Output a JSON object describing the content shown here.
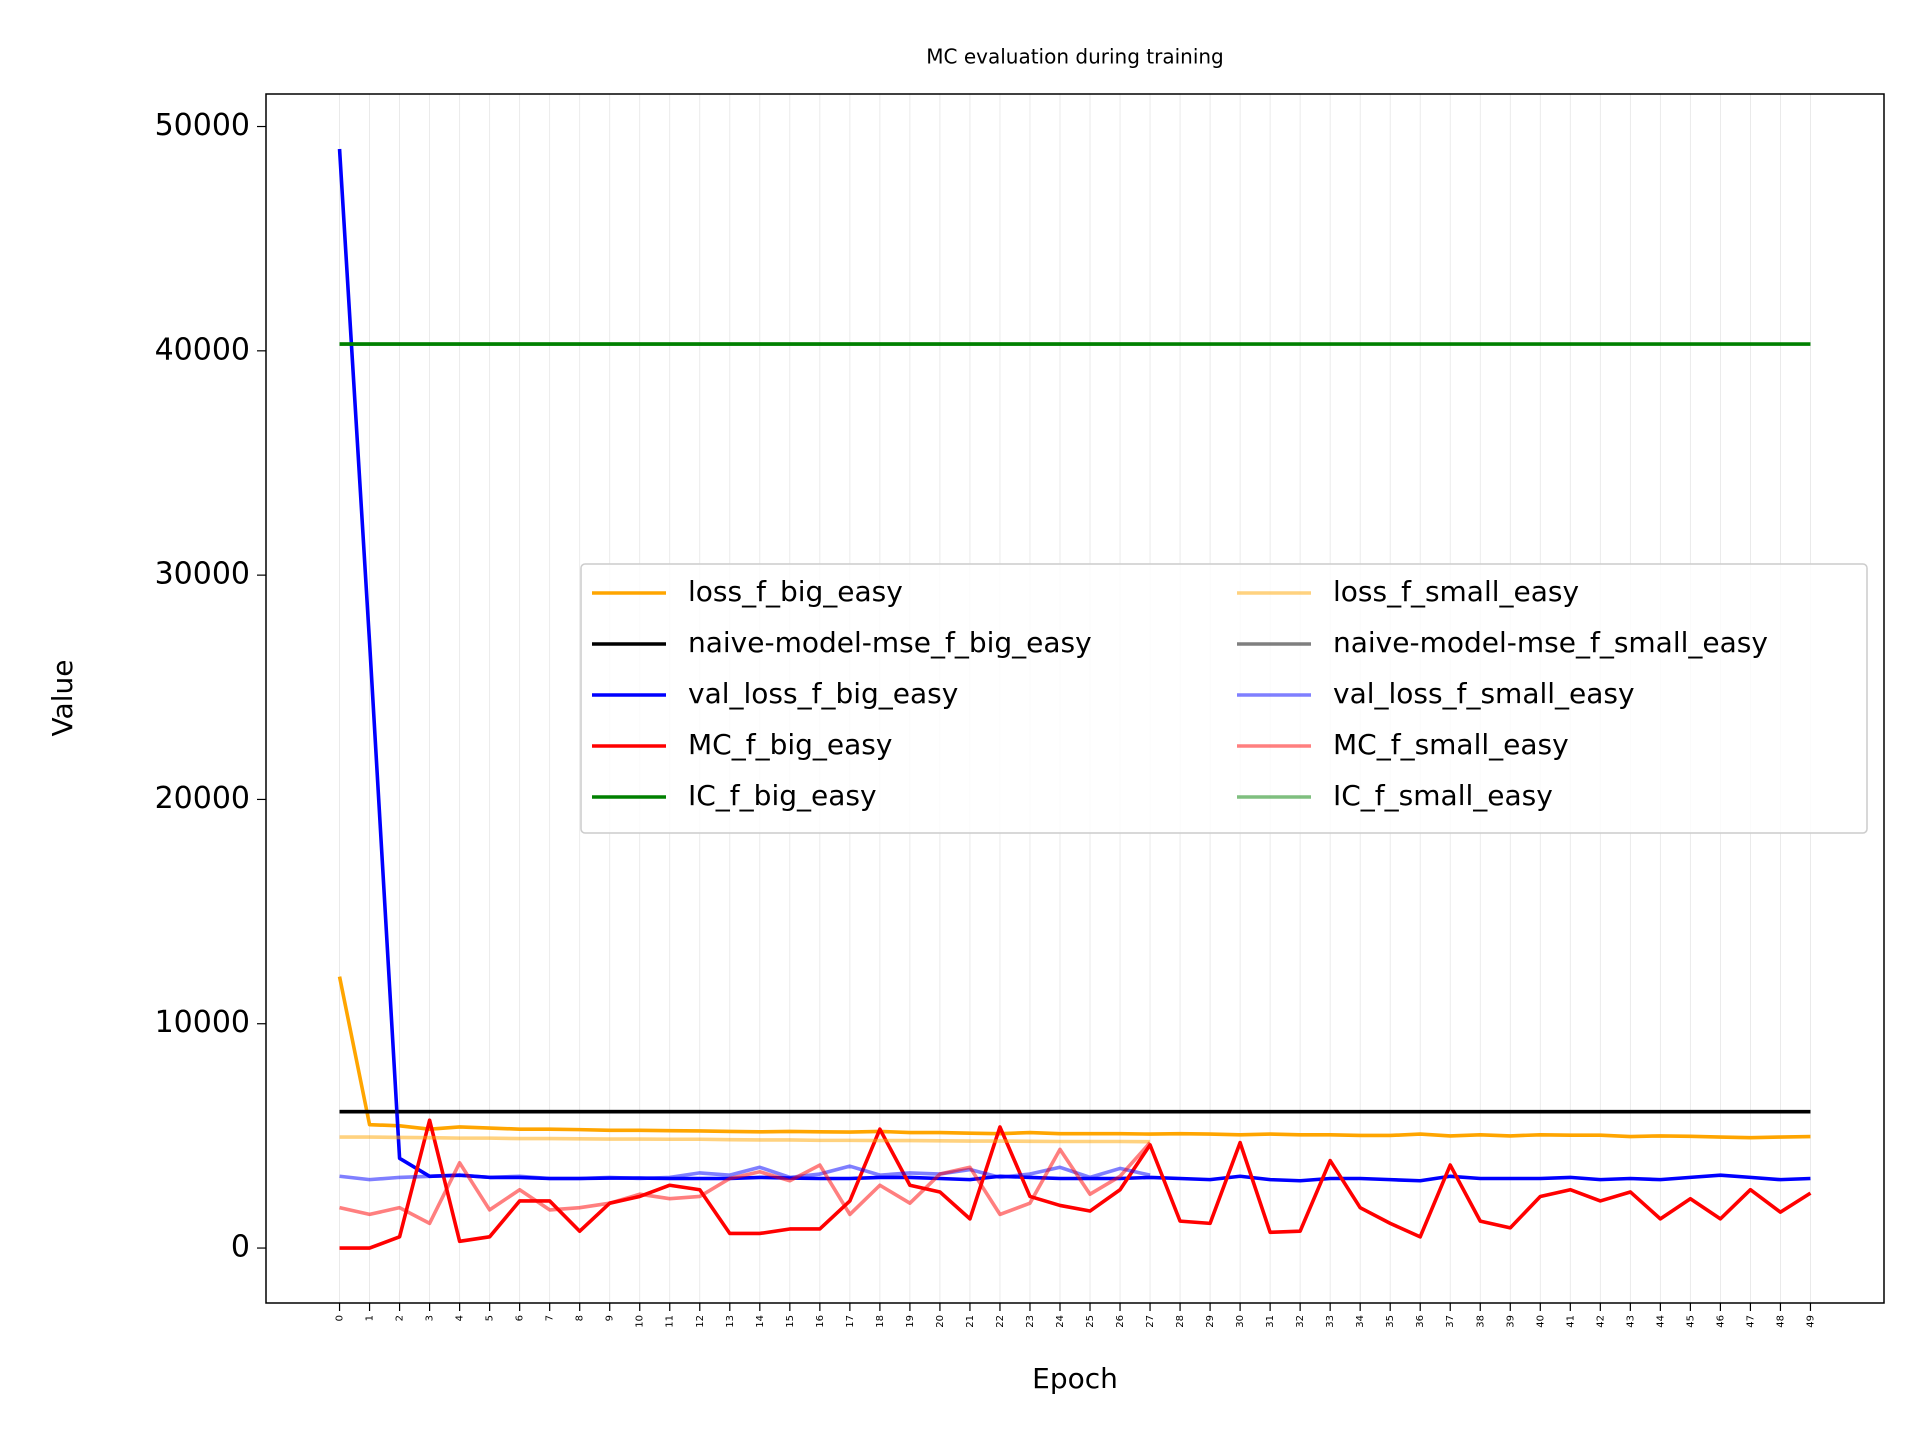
{
  "chart_data": {
    "type": "line",
    "title": "MC evaluation during training",
    "xlabel": "Epoch",
    "ylabel": "Value",
    "x": [
      0,
      1,
      2,
      3,
      4,
      5,
      6,
      7,
      8,
      9,
      10,
      11,
      12,
      13,
      14,
      15,
      16,
      17,
      18,
      19,
      20,
      21,
      22,
      23,
      24,
      25,
      26,
      27,
      28,
      29,
      30,
      31,
      32,
      33,
      34,
      35,
      36,
      37,
      38,
      39,
      40,
      41,
      42,
      43,
      44,
      45,
      46,
      47,
      48,
      49
    ],
    "xlim": [
      -2.45,
      51.45
    ],
    "xticks": [
      0,
      1,
      2,
      3,
      4,
      5,
      6,
      7,
      8,
      9,
      10,
      11,
      12,
      13,
      14,
      15,
      16,
      17,
      18,
      19,
      20,
      21,
      22,
      23,
      24,
      25,
      26,
      27,
      28,
      29,
      30,
      31,
      32,
      33,
      34,
      35,
      36,
      37,
      38,
      39,
      40,
      41,
      42,
      43,
      44,
      45,
      46,
      47,
      48,
      49
    ],
    "ylim": [
      -2450,
      51450
    ],
    "yticks": [
      0,
      10000,
      20000,
      30000,
      40000,
      50000
    ],
    "grid": "x",
    "legend": "center right",
    "legend_ncol": 2,
    "series": [
      {
        "name": "loss_f_big_easy",
        "color": "orange",
        "alpha": 1,
        "values": [
          12100,
          5500,
          5450,
          5300,
          5400,
          5350,
          5300,
          5300,
          5280,
          5250,
          5250,
          5230,
          5220,
          5200,
          5180,
          5200,
          5180,
          5170,
          5200,
          5150,
          5150,
          5120,
          5100,
          5150,
          5100,
          5100,
          5100,
          5080,
          5100,
          5080,
          5050,
          5080,
          5050,
          5050,
          5020,
          5020,
          5080,
          5000,
          5050,
          5000,
          5050,
          5030,
          5030,
          4970,
          5000,
          4980,
          4950,
          4920,
          4950,
          4970
        ]
      },
      {
        "name": "naive-model-mse_f_big_easy",
        "color": "black",
        "alpha": 1,
        "values": [
          6080,
          6080,
          6080,
          6080,
          6080,
          6080,
          6080,
          6080,
          6080,
          6080,
          6080,
          6080,
          6080,
          6080,
          6080,
          6080,
          6080,
          6080,
          6080,
          6080,
          6080,
          6080,
          6080,
          6080,
          6080,
          6080,
          6080,
          6080,
          6080,
          6080,
          6080,
          6080,
          6080,
          6080,
          6080,
          6080,
          6080,
          6080,
          6080,
          6080,
          6080,
          6080,
          6080,
          6080,
          6080,
          6080,
          6080,
          6080,
          6080,
          6080
        ]
      },
      {
        "name": "val_loss_f_big_easy",
        "color": "blue",
        "alpha": 1,
        "values": [
          49000,
          27000,
          4000,
          3200,
          3250,
          3150,
          3150,
          3100,
          3100,
          3120,
          3120,
          3100,
          3100,
          3100,
          3150,
          3120,
          3100,
          3100,
          3150,
          3150,
          3100,
          3050,
          3200,
          3150,
          3100,
          3100,
          3100,
          3150,
          3100,
          3050,
          3200,
          3050,
          3000,
          3100,
          3100,
          3050,
          3000,
          3200,
          3100,
          3100,
          3100,
          3150,
          3050,
          3100,
          3050,
          3150,
          3250,
          3150,
          3050,
          3100
        ]
      },
      {
        "name": "MC_f_big_easy",
        "color": "red",
        "alpha": 1,
        "values": [
          0,
          0,
          500,
          5700,
          300,
          500,
          2100,
          2100,
          750,
          2000,
          2300,
          2800,
          2600,
          650,
          650,
          850,
          850,
          2100,
          5300,
          2800,
          2500,
          1300,
          5400,
          2300,
          1900,
          1650,
          2600,
          4600,
          1200,
          1100,
          4700,
          700,
          750,
          3900,
          1800,
          1100,
          500,
          3700,
          1200,
          900,
          2300,
          2600,
          2100,
          2500,
          1300,
          2200,
          1300,
          2600,
          1600,
          2450
        ]
      },
      {
        "name": "IC_f_big_easy",
        "color": "green",
        "alpha": 1,
        "values": [
          40300,
          40300,
          40300,
          40300,
          40300,
          40300,
          40300,
          40300,
          40300,
          40300,
          40300,
          40300,
          40300,
          40300,
          40300,
          40300,
          40300,
          40300,
          40300,
          40300,
          40300,
          40300,
          40300,
          40300,
          40300,
          40300,
          40300,
          40300,
          40300,
          40300,
          40300,
          40300,
          40300,
          40300,
          40300,
          40300,
          40300,
          40300,
          40300,
          40300,
          40300,
          40300,
          40300,
          40300,
          40300,
          40300,
          40300,
          40300,
          40300,
          40300
        ]
      },
      {
        "name": "loss_f_small_easy",
        "color": "orange",
        "alpha": 0.5,
        "values": [
          4950,
          4950,
          4930,
          4920,
          4900,
          4900,
          4880,
          4880,
          4870,
          4860,
          4860,
          4850,
          4850,
          4830,
          4820,
          4820,
          4800,
          4800,
          4790,
          4790,
          4780,
          4770,
          4770,
          4760,
          4750,
          4750,
          4750,
          4740,
          null,
          null,
          null,
          null,
          null,
          null,
          null,
          null,
          null,
          null,
          null,
          null,
          null,
          null,
          null,
          null,
          null,
          null,
          null,
          null,
          null,
          null
        ]
      },
      {
        "name": "naive-model-mse_f_small_easy",
        "color": "black",
        "alpha": 0.5,
        "values": [
          6080,
          6080,
          6080,
          6080,
          6080,
          6080,
          6080,
          6080,
          6080,
          6080,
          6080,
          6080,
          6080,
          6080,
          6080,
          6080,
          6080,
          6080,
          6080,
          6080,
          6080,
          6080,
          6080,
          6080,
          6080,
          6080,
          6080,
          6080,
          null,
          null,
          null,
          null,
          null,
          null,
          null,
          null,
          null,
          null,
          null,
          null,
          null,
          null,
          null,
          null,
          null,
          null,
          null,
          null,
          null,
          null
        ]
      },
      {
        "name": "val_loss_f_small_easy",
        "color": "blue",
        "alpha": 0.5,
        "values": [
          3200,
          3050,
          3150,
          3200,
          3250,
          3150,
          3200,
          3100,
          3100,
          3150,
          3100,
          3150,
          3350,
          3250,
          3600,
          3150,
          3300,
          3650,
          3250,
          3350,
          3300,
          3500,
          3150,
          3300,
          3600,
          3150,
          3550,
          3250,
          null,
          null,
          null,
          null,
          null,
          null,
          null,
          null,
          null,
          null,
          null,
          null,
          null,
          null,
          null,
          null,
          null,
          null,
          null,
          null,
          null,
          null
        ]
      },
      {
        "name": "MC_f_small_easy",
        "color": "red",
        "alpha": 0.5,
        "values": [
          1800,
          1500,
          1800,
          1100,
          3800,
          1700,
          2600,
          1700,
          1800,
          2000,
          2400,
          2200,
          2300,
          3100,
          3400,
          3000,
          3700,
          1500,
          2800,
          2000,
          3300,
          3600,
          1500,
          2000,
          4400,
          2400,
          3200,
          4700,
          null,
          null,
          null,
          null,
          null,
          null,
          null,
          null,
          null,
          null,
          null,
          null,
          null,
          null,
          null,
          null,
          null,
          null,
          null,
          null,
          null,
          null
        ]
      },
      {
        "name": "IC_f_small_easy",
        "color": "green",
        "alpha": 0.5,
        "values": [
          40300,
          40300,
          40300,
          40300,
          40300,
          40300,
          40300,
          40300,
          40300,
          40300,
          40300,
          40300,
          40300,
          40300,
          40300,
          40300,
          40300,
          40300,
          40300,
          40300,
          40300,
          40300,
          40300,
          40300,
          40300,
          40300,
          40300,
          40300,
          null,
          null,
          null,
          null,
          null,
          null,
          null,
          null,
          null,
          null,
          null,
          null,
          null,
          null,
          null,
          null,
          null,
          null,
          null,
          null,
          null,
          null
        ]
      }
    ]
  }
}
